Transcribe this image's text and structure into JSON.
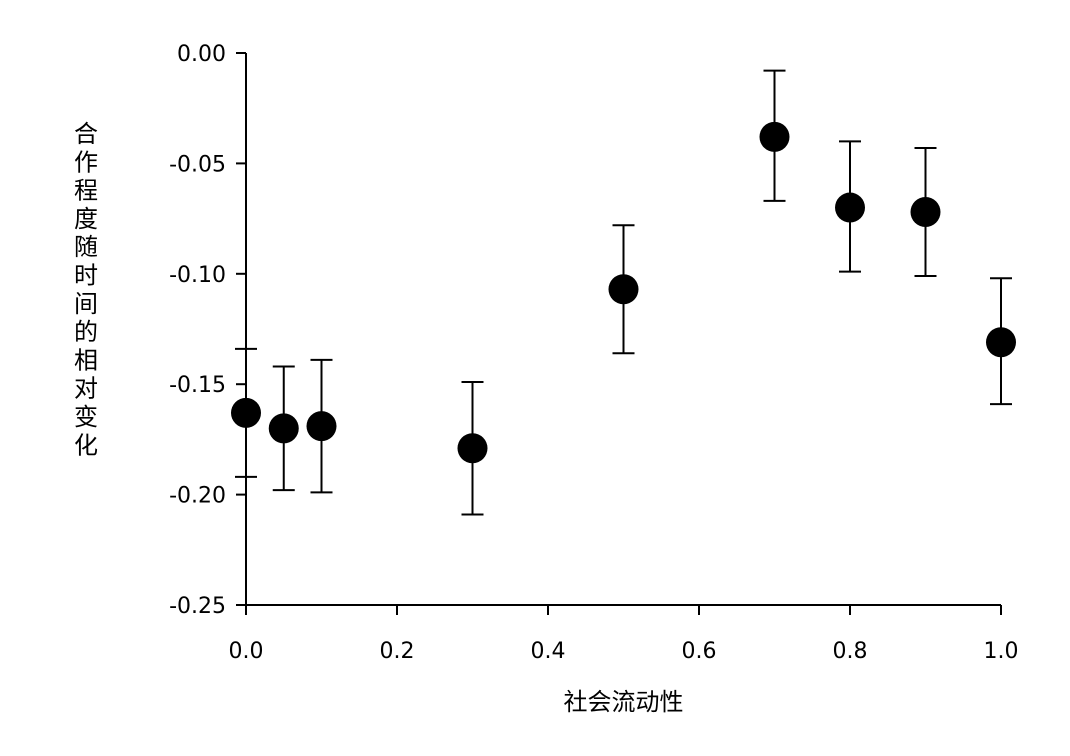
{
  "chart_data": {
    "type": "scatter",
    "title": "",
    "xlabel": "社会流动性",
    "ylabel": "合作程度随时间的相对变化",
    "xlim": [
      0.0,
      1.0
    ],
    "ylim": [
      -0.25,
      0.0
    ],
    "x_ticks": [
      "0.0",
      "0.2",
      "0.4",
      "0.6",
      "0.8",
      "1.0"
    ],
    "y_ticks": [
      "0.00",
      "-0.05",
      "-0.10",
      "-0.15",
      "-0.20",
      "-0.25"
    ],
    "grid": false,
    "legend": false,
    "marker_color": "#000000",
    "series": [
      {
        "x": [
          0.0,
          0.05,
          0.1,
          0.3,
          0.5,
          0.7,
          0.8,
          0.9,
          1.0
        ],
        "y": [
          -0.163,
          -0.17,
          -0.169,
          -0.179,
          -0.107,
          -0.038,
          -0.07,
          -0.072,
          -0.131
        ],
        "error_upper": [
          -0.134,
          -0.142,
          -0.139,
          -0.149,
          -0.078,
          -0.008,
          -0.04,
          -0.043,
          -0.102
        ],
        "error_lower": [
          -0.192,
          -0.198,
          -0.199,
          -0.209,
          -0.136,
          -0.067,
          -0.099,
          -0.101,
          -0.159
        ]
      }
    ]
  }
}
